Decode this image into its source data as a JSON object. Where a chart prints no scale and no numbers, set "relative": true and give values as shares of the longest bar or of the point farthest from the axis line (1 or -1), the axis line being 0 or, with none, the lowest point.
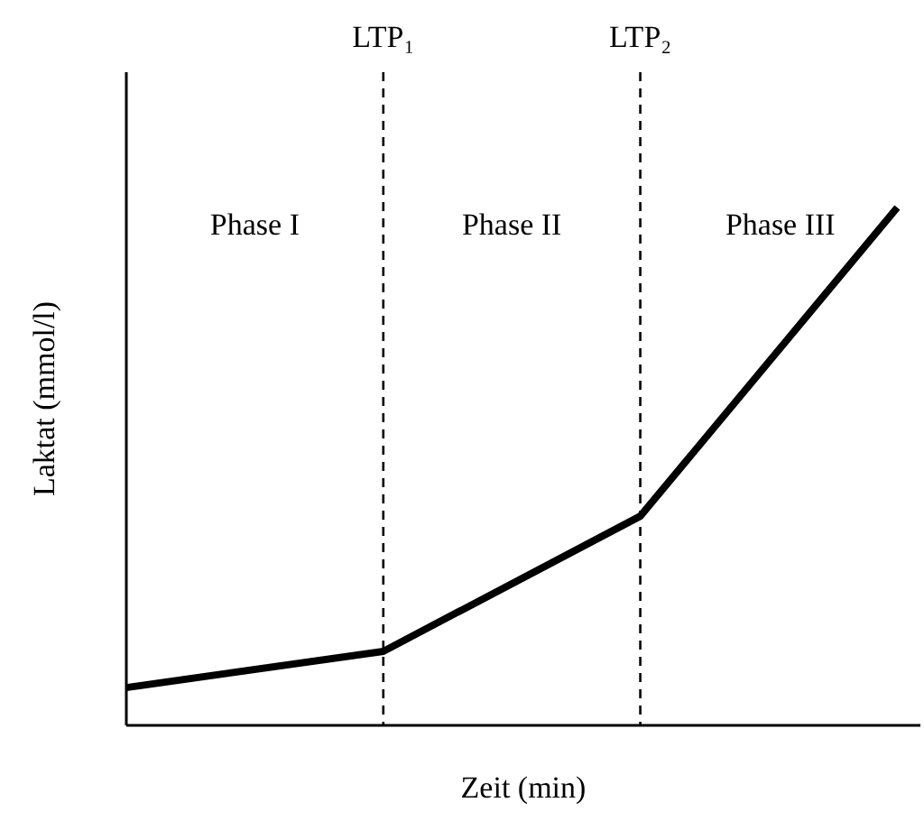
{
  "chart_data": {
    "type": "line",
    "relative": true,
    "xlabel": "Zeit (min)",
    "ylabel": "Laktat (mmol/l)",
    "categories": [
      null,
      null,
      null,
      null
    ],
    "series": [
      {
        "color": "#000000",
        "values": [
          0.073,
          0.143,
          0.404,
          1.0
        ]
      }
    ],
    "annotations": [
      "LTP₁",
      "LTP₂",
      "Phase I",
      "Phase II",
      "Phase III"
    ]
  }
}
